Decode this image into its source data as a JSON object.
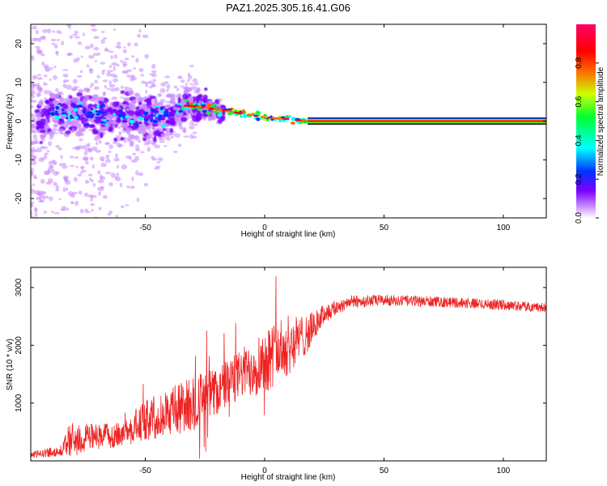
{
  "title": "PAZ1.2025.305.16.41.G06",
  "chart_data": [
    {
      "type": "heatmap",
      "name": "spectrogram",
      "xlabel": "Height of straight line (km)",
      "ylabel": "Frequency (Hz)",
      "xlim": [
        -98,
        118
      ],
      "ylim": [
        -25,
        25
      ],
      "x_ticks": [
        -50,
        0,
        50,
        100
      ],
      "y_ticks": [
        -20,
        -10,
        0,
        10,
        20
      ],
      "x_tick_labels": [
        "-50",
        "0",
        "50",
        "100"
      ],
      "y_tick_labels": [
        "-20",
        "-10",
        "0",
        "10",
        "20"
      ],
      "ridge": {
        "points": [
          [
            -90,
            2
          ],
          [
            -70,
            2
          ],
          [
            -55,
            1
          ],
          [
            -40,
            1.5
          ],
          [
            -33,
            4
          ],
          [
            -25,
            3.5
          ],
          [
            -10,
            2
          ],
          [
            0,
            1
          ],
          [
            10,
            0.5
          ],
          [
            18,
            0
          ],
          [
            118,
            0
          ]
        ],
        "note": "dominant Doppler frequency line converging to 0 Hz above ~18 km"
      },
      "colorbar": {
        "label": "Normalized spectral amplitude",
        "range": [
          0,
          1
        ],
        "ticks": [
          0.0,
          0.2,
          0.4,
          0.6,
          0.8
        ],
        "tick_labels": [
          "0.0",
          "0.2",
          "0.4",
          "0.6",
          "0.8"
        ],
        "colors": [
          "#ffffff",
          "#c98bff",
          "#7a00ff",
          "#0033ff",
          "#00ffff",
          "#00ff33",
          "#ccff00",
          "#ff6600",
          "#ff0000",
          "#ff0066"
        ]
      }
    },
    {
      "type": "line",
      "name": "snr",
      "xlabel": "Height of straight line (km)",
      "ylabel": "SNR (10 * v/v)",
      "xlim": [
        -98,
        118
      ],
      "ylim": [
        0,
        3350
      ],
      "x_ticks": [
        -50,
        0,
        50,
        100
      ],
      "y_ticks": [
        1000,
        2000,
        3000
      ],
      "x_tick_labels": [
        "-50",
        "0",
        "50",
        "100"
      ],
      "y_tick_labels": [
        "1000",
        "2000",
        "3000"
      ],
      "color": "#ee2222",
      "envelope": [
        {
          "x": -98,
          "mean": 100,
          "noise": 80
        },
        {
          "x": -85,
          "mean": 180,
          "noise": 150
        },
        {
          "x": -82,
          "mean": 350,
          "noise": 500
        },
        {
          "x": -70,
          "mean": 420,
          "noise": 350
        },
        {
          "x": -60,
          "mean": 450,
          "noise": 320
        },
        {
          "x": -50,
          "mean": 700,
          "noise": 550
        },
        {
          "x": -40,
          "mean": 850,
          "noise": 650
        },
        {
          "x": -30,
          "mean": 1000,
          "noise": 750
        },
        {
          "x": -20,
          "mean": 1200,
          "noise": 650
        },
        {
          "x": -10,
          "mean": 1500,
          "noise": 650
        },
        {
          "x": 0,
          "mean": 1750,
          "noise": 900
        },
        {
          "x": 10,
          "mean": 2000,
          "noise": 800
        },
        {
          "x": 18,
          "mean": 2200,
          "noise": 500
        },
        {
          "x": 25,
          "mean": 2550,
          "noise": 250
        },
        {
          "x": 35,
          "mean": 2750,
          "noise": 180
        },
        {
          "x": 50,
          "mean": 2780,
          "noise": 150
        },
        {
          "x": 75,
          "mean": 2750,
          "noise": 140
        },
        {
          "x": 100,
          "mean": 2700,
          "noise": 140
        },
        {
          "x": 118,
          "mean": 2650,
          "noise": 120
        }
      ]
    }
  ]
}
